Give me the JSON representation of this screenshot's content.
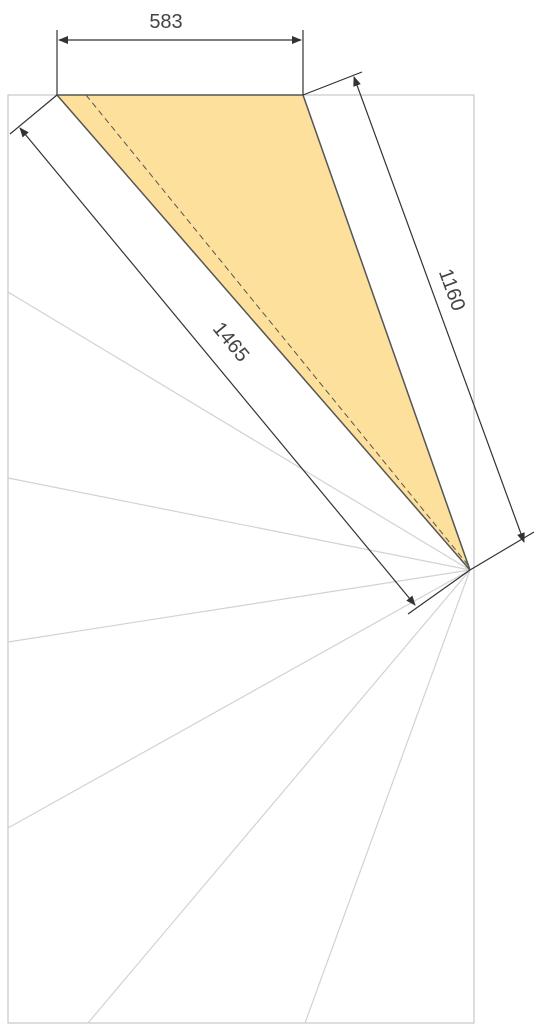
{
  "dimensions": {
    "top_width": "583",
    "long_side": "1465",
    "right_side": "1160"
  },
  "colors": {
    "fill": "#FCE09C",
    "frame": "#BDBDBD",
    "rays": "#D2D2D2",
    "edge": "#555555",
    "dimension_line": "#333333",
    "text": "#444444"
  }
}
